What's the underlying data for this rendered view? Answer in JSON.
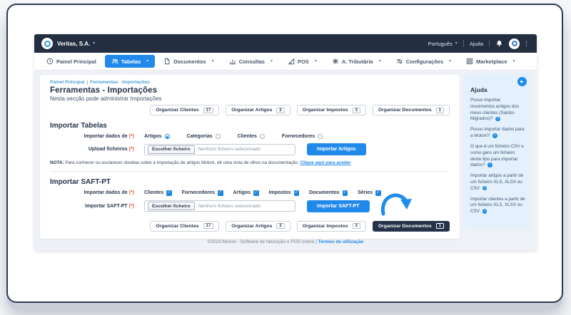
{
  "icons": {
    "chevron_down": "▾",
    "kebab": "⋮",
    "play": "▶",
    "help_q": "?",
    "check": "✓"
  },
  "colors": {
    "accent_blue": "#2189e9",
    "dark_navy": "#232e40",
    "active_button": "#25324a",
    "help_panel_bg": "#e4f1fc",
    "page_bg": "#eef1f5",
    "required_red": "#e2574c",
    "breadcrumb_blue": "#4f9fd0"
  },
  "topbar": {
    "company": "Veritas, S.A.",
    "language": "Português",
    "help": "Ajuda"
  },
  "nav": {
    "items": [
      {
        "id": "painel",
        "label": "Painel Principal",
        "icon": "clock-icon",
        "active": false,
        "has_chevron": false
      },
      {
        "id": "tabelas",
        "label": "Tabelas",
        "icon": "users-icon",
        "active": true,
        "has_chevron": true
      },
      {
        "id": "documentos",
        "label": "Documentos",
        "icon": "document-icon",
        "active": false,
        "has_chevron": true
      },
      {
        "id": "consultas",
        "label": "Consultas",
        "icon": "chart-icon",
        "active": false,
        "has_chevron": true
      },
      {
        "id": "pos",
        "label": "POS",
        "icon": "pos-icon",
        "active": false,
        "has_chevron": true
      },
      {
        "id": "tributaria",
        "label": "A. Tributária",
        "icon": "tax-icon",
        "active": false,
        "has_chevron": true
      },
      {
        "id": "configuracoes",
        "label": "Configurações",
        "icon": "settings-sliders-icon",
        "active": false,
        "has_chevron": true
      },
      {
        "id": "marketplace",
        "label": "Marketplace",
        "icon": "marketplace-grid-icon",
        "active": false,
        "has_chevron": true
      }
    ]
  },
  "breadcrumb": {
    "items": [
      "Painel Principal",
      "Ferramentas - Importações"
    ],
    "separator": "|"
  },
  "page": {
    "title": "Ferramentas - Importações",
    "subtitle": "Nesta secção pode administrar Importações"
  },
  "organize_buttons": [
    {
      "label": "Organizar Clientes",
      "count": "17"
    },
    {
      "label": "Organizar Artigos",
      "count": "2"
    },
    {
      "label": "Organizar Impostos",
      "count": "3"
    },
    {
      "label": "Organizar Documentos",
      "count": "1"
    }
  ],
  "organize_bottom_active_index": 3,
  "import_tables": {
    "heading": "Importar Tabelas",
    "data_label": "Importar dados de",
    "required": "(*)",
    "radios": [
      {
        "label": "Artigos",
        "checked": true
      },
      {
        "label": "Categorias",
        "checked": false
      },
      {
        "label": "Clientes",
        "checked": false
      },
      {
        "label": "Fornecedores",
        "checked": false
      }
    ],
    "upload_label": "Upload ficheiros",
    "file_button": "Escolher ficheiro",
    "file_placeholder": "Nenhum ficheiro selecionado",
    "submit": "Importar Artigos",
    "note_label": "NOTA:",
    "note_text": "Para conhecer ou esclarecer dúvidas sobre a importação de artigos Moloni, dê uma vista de olhos na documentação.",
    "note_link": "Clique aqui para aceder"
  },
  "import_saft": {
    "heading": "Importar SAFT-PT",
    "data_label": "Importar dados de",
    "required": "(*)",
    "checkboxes": [
      {
        "label": "Clientes",
        "checked": true
      },
      {
        "label": "Fornecedores",
        "checked": true
      },
      {
        "label": "Artigos",
        "checked": true
      },
      {
        "label": "Impostos",
        "checked": true
      },
      {
        "label": "Documentos",
        "checked": true
      },
      {
        "label": "Séries",
        "checked": true
      }
    ],
    "upload_label": "Importar SAFT-PT",
    "file_button": "Escolher ficheiro",
    "file_placeholder": "Nenhum ficheiro selecionado",
    "submit": "Importar SAFT-PT"
  },
  "help_panel": {
    "heading": "Ajuda",
    "items": [
      "Posso importar movimentos antigos dos meus clientes (Saldos Migrados)?",
      "Posso importar dados para a Moloni?",
      "O que é um ficheiro CSV e como gero um ficheiro deste tipo para importar dados?",
      "Importar artigos a partir de um ficheiro XLS, XLSX ou CSV",
      "Importar clientes a partir de um ficheiro XLS, XLSX ou CSV"
    ]
  },
  "footer": {
    "text": "©2023 Moloni - Software de faturação e POS online",
    "separator": "|",
    "link": "Termos de utilização"
  }
}
